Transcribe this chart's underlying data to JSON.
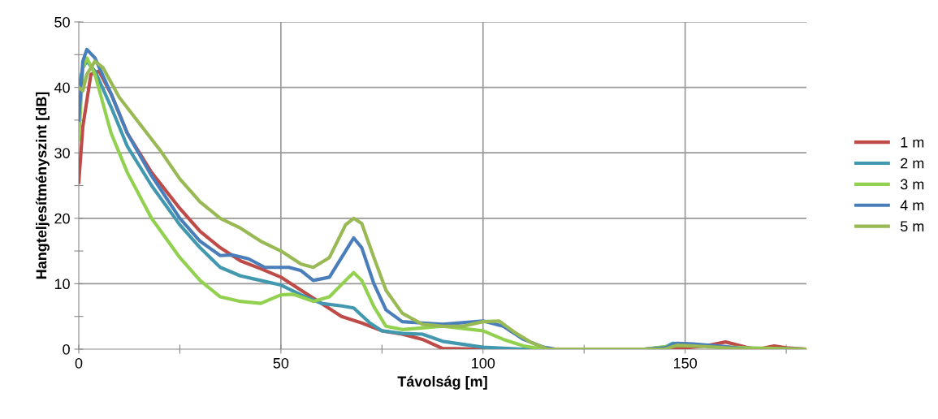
{
  "chart_data": {
    "type": "line",
    "xlabel": "Távolság [m]",
    "ylabel": "Hangteljesítményszint [dB]",
    "xlim": [
      0,
      180
    ],
    "ylim": [
      0,
      50
    ],
    "xticks": [
      0,
      {
        "value": 25,
        "label": null
      },
      50,
      {
        "value": 75,
        "label": null
      },
      100,
      {
        "value": 125,
        "label": null
      },
      150,
      {
        "value": 175,
        "label": null
      }
    ],
    "yticks": [
      0,
      {
        "value": 5,
        "label": null
      },
      10,
      {
        "value": 15,
        "label": null
      },
      20,
      {
        "value": 25,
        "label": null
      },
      30,
      {
        "value": 35,
        "label": null
      },
      40,
      {
        "value": 45,
        "label": null
      },
      50
    ],
    "grid": true,
    "legend": "right",
    "marker": "none",
    "line_style": "solid",
    "series": [
      {
        "name": "1 m",
        "color": "#be4b48",
        "x": [
          0,
          1,
          2,
          3,
          5,
          8,
          12,
          18,
          25,
          30,
          35,
          40,
          45,
          50,
          55,
          60,
          65,
          70,
          75,
          80,
          85,
          90,
          100,
          110,
          140,
          145,
          150,
          155,
          160,
          165,
          168,
          172,
          175,
          180
        ],
        "values": [
          25.5,
          34,
          38,
          42,
          42.5,
          39,
          33,
          27,
          21.5,
          18,
          15.5,
          13.5,
          12.3,
          11,
          9,
          7,
          5,
          4,
          2.8,
          2.3,
          1.5,
          0.1,
          0,
          0,
          0,
          0.3,
          0.2,
          0.5,
          1.1,
          0.3,
          0,
          0.5,
          0.2,
          0
        ]
      },
      {
        "name": "2 m",
        "color": "#4198af",
        "x": [
          0,
          1,
          2,
          4,
          8,
          12,
          18,
          25,
          30,
          35,
          40,
          45,
          50,
          55,
          60,
          65,
          68,
          72,
          75,
          80,
          85,
          90,
          100,
          110,
          140,
          145,
          147,
          150,
          155,
          160,
          180
        ],
        "values": [
          40,
          43,
          44,
          42.5,
          37,
          31,
          25,
          19,
          15.5,
          12.5,
          11.2,
          10.5,
          9.8,
          8.3,
          7,
          6.6,
          6.3,
          4,
          2.8,
          2.4,
          2.3,
          1.2,
          0.3,
          0,
          0,
          0.3,
          0.9,
          0.8,
          0.5,
          0.2,
          0
        ]
      },
      {
        "name": "3 m",
        "color": "#92d050",
        "x": [
          0,
          1,
          2,
          4,
          8,
          12,
          18,
          25,
          30,
          35,
          40,
          45,
          50,
          53,
          58,
          62,
          66,
          68,
          70,
          73,
          76,
          80,
          90,
          100,
          105,
          110,
          115,
          140,
          148,
          155,
          165,
          180
        ],
        "values": [
          32,
          43,
          44.5,
          42,
          33,
          27,
          20,
          14,
          10.5,
          8,
          7.3,
          7,
          8.3,
          8.4,
          7.3,
          8,
          10.5,
          11.7,
          10.5,
          6.5,
          3.5,
          3,
          3.5,
          2.8,
          1.5,
          0.5,
          0,
          0,
          0.6,
          0.5,
          0.2,
          0
        ]
      },
      {
        "name": "4 m",
        "color": "#4a7ebb",
        "x": [
          0,
          1,
          2,
          4,
          8,
          12,
          18,
          25,
          30,
          35,
          38,
          42,
          46,
          52,
          55,
          58,
          62,
          66,
          68,
          70,
          73,
          76,
          80,
          90,
          100,
          105,
          110,
          115,
          118,
          140,
          145,
          148,
          152,
          160,
          165,
          180
        ],
        "values": [
          35,
          44,
          45.8,
          44.5,
          39,
          33,
          26.5,
          20,
          16.5,
          14.3,
          14.4,
          13.8,
          12.5,
          12.5,
          12,
          10.5,
          11,
          15,
          17,
          15.5,
          10,
          6,
          4.2,
          3.8,
          4.3,
          3.5,
          1.5,
          0.3,
          0,
          0,
          0.2,
          0.9,
          0.8,
          0.4,
          0,
          0
        ]
      },
      {
        "name": "5 m",
        "color": "#98b954",
        "x": [
          0,
          1,
          2,
          4,
          6,
          10,
          15,
          20,
          25,
          30,
          35,
          40,
          45,
          50,
          55,
          58,
          62,
          66,
          68,
          70,
          73,
          76,
          80,
          85,
          90,
          95,
          100,
          104,
          108,
          112,
          116,
          140,
          145,
          148,
          155,
          160,
          165,
          180
        ],
        "values": [
          40,
          39.5,
          42,
          44,
          43,
          38.5,
          34.5,
          30.5,
          26,
          22.5,
          20,
          18.5,
          16.5,
          15,
          13,
          12.5,
          14,
          19,
          20,
          19.2,
          14,
          9,
          5.5,
          3.8,
          3.5,
          3.5,
          4.2,
          4.3,
          2.5,
          1,
          0,
          0,
          0,
          0.6,
          0.4,
          0.2,
          0,
          0
        ]
      }
    ]
  }
}
